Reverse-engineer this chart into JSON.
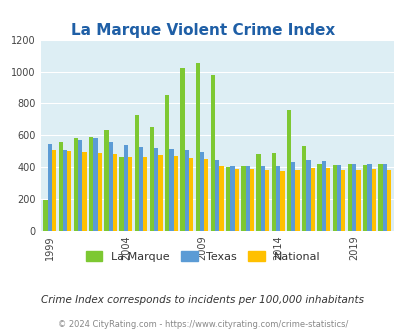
{
  "title": "La Marque Violent Crime Index",
  "subtitle": "Crime Index corresponds to incidents per 100,000 inhabitants",
  "footer": "© 2024 CityRating.com - https://www.cityrating.com/crime-statistics/",
  "years": [
    1999,
    2000,
    2001,
    2002,
    2003,
    2004,
    2005,
    2006,
    2007,
    2008,
    2009,
    2010,
    2011,
    2012,
    2013,
    2014,
    2015,
    2016,
    2017,
    2018,
    2019,
    2020,
    2021
  ],
  "la_marque": [
    195,
    560,
    580,
    590,
    635,
    465,
    730,
    650,
    855,
    1025,
    1055,
    975,
    400,
    410,
    480,
    490,
    760,
    535,
    420,
    415,
    420,
    415,
    420
  ],
  "texas": [
    545,
    510,
    570,
    580,
    555,
    540,
    525,
    520,
    515,
    510,
    495,
    445,
    410,
    410,
    405,
    405,
    435,
    445,
    440,
    415,
    420,
    420,
    420
  ],
  "national": [
    505,
    500,
    495,
    490,
    480,
    465,
    465,
    475,
    470,
    460,
    450,
    405,
    390,
    390,
    380,
    375,
    380,
    395,
    395,
    385,
    380,
    390,
    385
  ],
  "ylim": [
    0,
    1200
  ],
  "yticks": [
    0,
    200,
    400,
    600,
    800,
    1000,
    1200
  ],
  "xtick_years": [
    1999,
    2004,
    2009,
    2014,
    2019
  ],
  "bar_width": 0.28,
  "color_lamarque": "#7dc832",
  "color_texas": "#5b9bd5",
  "color_national": "#ffc000",
  "bg_color": "#ddeef4",
  "title_color": "#1f5fa6",
  "subtitle_color": "#333333",
  "footer_color": "#888888",
  "legend_lamarque": "La Marque",
  "legend_texas": "Texas",
  "legend_national": "National"
}
